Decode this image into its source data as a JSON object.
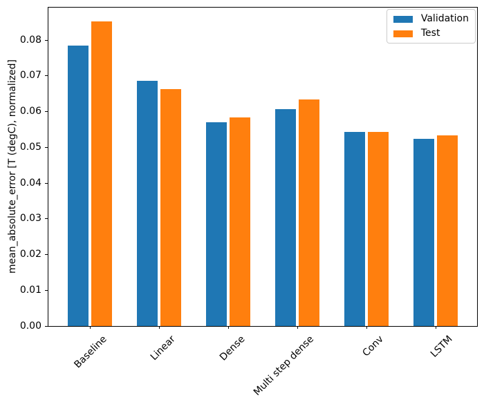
{
  "chart_data": {
    "type": "bar",
    "title": "",
    "categories": [
      "Baseline",
      "Linear",
      "Dense",
      "Multi step dense",
      "Conv",
      "LSTM"
    ],
    "series": [
      {
        "name": "Validation",
        "color": "#1f77b4",
        "values": [
          0.0785,
          0.0686,
          0.0571,
          0.0606,
          0.0544,
          0.0523
        ]
      },
      {
        "name": "Test",
        "color": "#ff7f0e",
        "values": [
          0.0852,
          0.0663,
          0.0583,
          0.0634,
          0.0543,
          0.0533
        ]
      }
    ],
    "xlabel": "",
    "ylabel": "mean_absolute_error [T (degC), normalized]",
    "ylim": [
      0,
      0.0891
    ],
    "yticks": [
      {
        "value": 0.0,
        "label": "0.00"
      },
      {
        "value": 0.01,
        "label": "0.01"
      },
      {
        "value": 0.02,
        "label": "0.02"
      },
      {
        "value": 0.03,
        "label": "0.03"
      },
      {
        "value": 0.04,
        "label": "0.04"
      },
      {
        "value": 0.05,
        "label": "0.05"
      },
      {
        "value": 0.06,
        "label": "0.06"
      },
      {
        "value": 0.07,
        "label": "0.07"
      },
      {
        "value": 0.08,
        "label": "0.08"
      }
    ],
    "xtick_rotation": 45,
    "grid": false,
    "legend": {
      "position": "upper right",
      "entries": [
        "Validation",
        "Test"
      ]
    },
    "axis_color": "#000000",
    "background": "#ffffff"
  }
}
